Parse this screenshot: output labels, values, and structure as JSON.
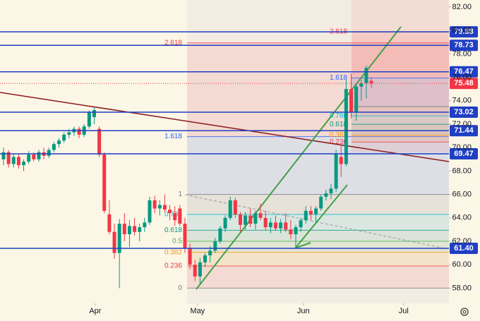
{
  "chart_data": {
    "type": "candlestick",
    "categories": [
      null,
      null,
      null,
      null,
      null,
      null,
      null,
      null,
      null,
      null,
      null,
      null,
      null,
      null,
      null,
      null,
      null,
      null,
      null,
      null,
      null,
      null,
      null,
      null,
      null,
      null,
      null,
      null,
      null,
      null,
      null,
      null,
      null,
      null,
      null,
      null,
      null,
      null,
      null,
      null,
      null,
      null,
      null,
      null,
      null,
      null,
      null,
      null,
      null,
      null,
      null,
      null,
      null,
      null,
      null,
      null,
      null,
      null,
      null,
      null,
      null,
      null,
      null,
      null,
      null,
      null,
      null,
      null,
      null,
      null,
      null,
      null,
      null,
      null
    ],
    "open": [
      69.0,
      69.6,
      68.6,
      69.2,
      68.5,
      68.8,
      69.4,
      69.0,
      69.6,
      69.3,
      69.8,
      70.3,
      70.6,
      71.1,
      71.3,
      71.6,
      71.1,
      71.8,
      72.6,
      71.6,
      69.4,
      64.3,
      62.8,
      61.0,
      63.5,
      62.6,
      63.3,
      62.8,
      63.2,
      63.6,
      65.5,
      64.8,
      65.1,
      64.7,
      64.4,
      64.8,
      63.5,
      61.4,
      60.0,
      59.0,
      60.2,
      60.8,
      61.2,
      62.0,
      63.1,
      64.0,
      65.5,
      64.3,
      63.4,
      64.2,
      63.5,
      64.4,
      64.0,
      63.2,
      63.6,
      63.1,
      63.6,
      63.0,
      62.6,
      63.2,
      63.8,
      64.6,
      64.3,
      64.8,
      65.8,
      66.1,
      66.5,
      69.2,
      68.6,
      75.0,
      73.0,
      75.2,
      75.5,
      75.7
    ],
    "high": [
      70.0,
      69.8,
      69.5,
      69.4,
      69.0,
      69.7,
      69.6,
      69.8,
      70.0,
      70.0,
      70.5,
      70.8,
      71.3,
      71.6,
      71.8,
      71.8,
      72.0,
      73.2,
      73.4,
      71.8,
      69.6,
      65.5,
      63.5,
      63.9,
      64.4,
      63.8,
      64.0,
      63.5,
      64.0,
      65.8,
      65.9,
      65.5,
      66.0,
      65.1,
      65.0,
      65.1,
      64.0,
      61.8,
      60.4,
      60.6,
      61.0,
      61.6,
      62.3,
      63.3,
      64.2,
      65.8,
      65.7,
      64.5,
      64.5,
      64.8,
      64.6,
      65.2,
      64.6,
      64.0,
      64.2,
      63.9,
      64.4,
      63.8,
      63.4,
      64.0,
      65.0,
      65.0,
      65.0,
      66.0,
      66.4,
      66.9,
      69.8,
      70.2,
      75.8,
      76.3,
      75.4,
      75.8,
      77.0,
      76.0
    ],
    "low": [
      68.5,
      68.3,
      68.3,
      68.2,
      68.0,
      68.6,
      68.8,
      68.8,
      69.0,
      69.1,
      69.6,
      70.0,
      70.4,
      70.8,
      71.0,
      70.8,
      70.9,
      71.6,
      72.0,
      69.2,
      64.4,
      62.6,
      60.5,
      58.0,
      62.0,
      61.5,
      62.5,
      62.0,
      62.8,
      63.4,
      64.4,
      64.2,
      64.5,
      63.8,
      63.3,
      63.3,
      61.0,
      59.6,
      58.6,
      58.3,
      59.8,
      60.2,
      61.0,
      61.8,
      62.8,
      63.8,
      64.0,
      62.8,
      63.0,
      63.2,
      63.0,
      63.8,
      62.9,
      62.7,
      62.9,
      62.7,
      62.8,
      62.2,
      61.5,
      62.8,
      63.5,
      63.8,
      63.6,
      64.6,
      65.5,
      65.6,
      66.2,
      67.5,
      68.4,
      72.5,
      72.3,
      74.0,
      74.2,
      75.1
    ],
    "close": [
      69.6,
      68.6,
      69.2,
      68.5,
      68.8,
      69.4,
      69.0,
      69.6,
      69.3,
      69.8,
      70.3,
      70.6,
      71.1,
      71.3,
      71.6,
      71.1,
      71.8,
      73.0,
      73.2,
      69.4,
      64.6,
      62.8,
      61.0,
      63.5,
      62.6,
      63.3,
      62.8,
      63.2,
      63.6,
      65.5,
      64.8,
      65.1,
      64.7,
      64.4,
      63.8,
      63.5,
      61.4,
      60.0,
      59.0,
      60.2,
      60.8,
      61.2,
      62.0,
      63.1,
      64.0,
      65.5,
      64.3,
      63.4,
      64.2,
      63.5,
      64.4,
      64.0,
      63.2,
      63.6,
      63.1,
      63.6,
      63.0,
      62.6,
      63.2,
      63.8,
      64.6,
      64.3,
      64.8,
      65.8,
      66.1,
      66.5,
      69.5,
      68.6,
      75.0,
      73.0,
      75.2,
      75.5,
      76.8,
      75.48
    ],
    "up_color": "#089981",
    "down_color": "#f23645",
    "xlim": [
      -0.7,
      88.4
    ],
    "xticks": [
      {
        "value": 18.2,
        "label": "Apr"
      },
      {
        "value": 38.5,
        "label": "May"
      },
      {
        "value": 59.5,
        "label": "Jun"
      },
      {
        "value": 79.4,
        "label": "Jul"
      }
    ],
    "ylim": [
      56.7,
      82.6
    ],
    "yticks": [
      {
        "value": 58,
        "label": "58.00"
      },
      {
        "value": 60,
        "label": "60.00"
      },
      {
        "value": 62,
        "label": "62.00"
      },
      {
        "value": 64,
        "label": "64.00"
      },
      {
        "value": 66,
        "label": "66.00"
      },
      {
        "value": 68,
        "label": "68.00"
      },
      {
        "value": 70,
        "label": "70.00"
      },
      {
        "value": 72,
        "label": "72.00"
      },
      {
        "value": 74,
        "label": "74.00"
      },
      {
        "value": 76,
        "label": "76.00"
      },
      {
        "value": 78,
        "label": "78.00"
      },
      {
        "value": 80,
        "label": "80.00"
      },
      {
        "value": 82,
        "label": "82.00"
      }
    ],
    "levels": [
      79.88,
      78.73,
      76.47,
      73.02,
      71.44,
      69.47,
      {
        "value": 61.4,
        "label": "61.40"
      }
    ],
    "level_color": "#1f3fc4",
    "last_price": 75.48,
    "last_price_color": "#f23645",
    "fib_sets": [
      {
        "levels": [
          {
            "ratio": 0,
            "price": 58.0,
            "color": "#787b86"
          },
          {
            "ratio": 0.236,
            "price": 59.89,
            "color": "#f23645"
          },
          {
            "ratio": 0.382,
            "price": 61.06,
            "color": "#ff9800"
          },
          {
            "ratio": 0.5,
            "price": 62.0,
            "color": "#4caf50"
          },
          {
            "ratio": 0.618,
            "price": 62.94,
            "color": "#089981"
          },
          {
            "ratio": 0.786,
            "price": 64.29,
            "color": "#00bcd4"
          },
          {
            "ratio": 1,
            "price": 66.0,
            "color": "#787b86"
          },
          {
            "ratio": 1.618,
            "price": 70.94,
            "color": "#2962ff"
          },
          {
            "ratio": 2.618,
            "price": 78.94,
            "color": "#f23645"
          }
        ]
      },
      {
        "levels": [
          {
            "ratio": 0.236,
            "price": 70.48,
            "color": "#f23645"
          },
          {
            "ratio": 0.382,
            "price": 71.06,
            "color": "#ff9800"
          },
          {
            "ratio": 0.618,
            "price": 71.99,
            "color": "#089981"
          },
          {
            "ratio": 0.786,
            "price": 72.71,
            "color": "#00bcd4"
          },
          {
            "ratio": 1,
            "price": 73.5,
            "color": "#787b86"
          },
          {
            "ratio": 1.618,
            "price": 75.94,
            "color": "#2962ff"
          },
          {
            "ratio": 2.618,
            "price": 79.9,
            "color": "#f23645"
          }
        ]
      }
    ]
  }
}
